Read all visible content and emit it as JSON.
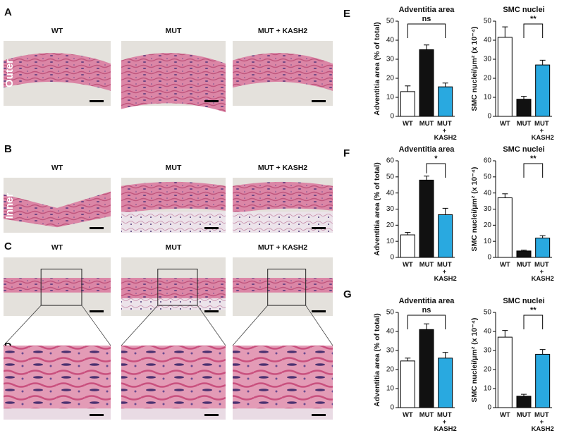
{
  "panels": {
    "letters": [
      "A",
      "B",
      "C",
      "D"
    ],
    "columns": [
      "WT",
      "MUT",
      "MUT + KASH2"
    ],
    "row_labels": [
      "Outer",
      "Inner"
    ]
  },
  "chart_letters": [
    "E",
    "F",
    "G"
  ],
  "chart_data": [
    {
      "type": "bar",
      "title": "Adventitia area",
      "ylabel": "Adventitia area (% of total)",
      "categories": [
        "WT",
        "MUT",
        "MUT + KASH2"
      ],
      "values": [
        13,
        35,
        15.5
      ],
      "errors": [
        3,
        2.5,
        2
      ],
      "colors": [
        "#ffffff",
        "#111111",
        "#29a9e0"
      ],
      "ylim": [
        0,
        50
      ],
      "yticks": [
        0,
        10,
        20,
        30,
        40,
        50
      ],
      "significance": {
        "label": "ns",
        "between": [
          0,
          2
        ]
      }
    },
    {
      "type": "bar",
      "title": "SMC nuclei",
      "ylabel": "SMC nuclei/μm² (x 10⁻⁴)",
      "categories": [
        "WT",
        "MUT",
        "MUT + KASH2"
      ],
      "values": [
        41.5,
        9,
        27
      ],
      "errors": [
        5.5,
        1.5,
        2.5
      ],
      "colors": [
        "#ffffff",
        "#111111",
        "#29a9e0"
      ],
      "ylim": [
        0,
        50
      ],
      "yticks": [
        0,
        10,
        20,
        30,
        40,
        50
      ],
      "significance": {
        "label": "**",
        "between": [
          1,
          2
        ]
      }
    },
    {
      "type": "bar",
      "title": "Adventitia area",
      "ylabel": "Adventitia area (% of total)",
      "categories": [
        "WT",
        "MUT",
        "MUT + KASH2"
      ],
      "values": [
        14,
        48,
        26.5
      ],
      "errors": [
        1.5,
        2.5,
        4
      ],
      "colors": [
        "#ffffff",
        "#111111",
        "#29a9e0"
      ],
      "ylim": [
        0,
        60
      ],
      "yticks": [
        0,
        10,
        20,
        30,
        40,
        50,
        60
      ],
      "significance": {
        "label": "*",
        "between": [
          1,
          2
        ]
      }
    },
    {
      "type": "bar",
      "title": "SMC nuclei",
      "ylabel": "SMC nuclei/μm² (x 10⁻⁴)",
      "categories": [
        "WT",
        "MUT",
        "MUT + KASH2"
      ],
      "values": [
        37,
        4,
        12
      ],
      "errors": [
        2.5,
        0.5,
        1.5
      ],
      "colors": [
        "#ffffff",
        "#111111",
        "#29a9e0"
      ],
      "ylim": [
        0,
        60
      ],
      "yticks": [
        0,
        10,
        20,
        30,
        40,
        50,
        60
      ],
      "significance": {
        "label": "**",
        "between": [
          1,
          2
        ]
      }
    },
    {
      "type": "bar",
      "title": "Adventitia area",
      "ylabel": "Adventitia area (% of total)",
      "categories": [
        "WT",
        "MUT",
        "MUT + KASH2"
      ],
      "values": [
        24.5,
        41,
        26
      ],
      "errors": [
        1.5,
        3,
        3
      ],
      "colors": [
        "#ffffff",
        "#111111",
        "#29a9e0"
      ],
      "ylim": [
        0,
        50
      ],
      "yticks": [
        0,
        10,
        20,
        30,
        40,
        50
      ],
      "significance": {
        "label": "ns",
        "between": [
          0,
          2
        ]
      }
    },
    {
      "type": "bar",
      "title": "SMC nuclei",
      "ylabel": "SMC nuclei/μm² (x 10⁻⁴)",
      "categories": [
        "WT",
        "MUT",
        "MUT + KASH2"
      ],
      "values": [
        37,
        6,
        28
      ],
      "errors": [
        3.5,
        1,
        2.5
      ],
      "colors": [
        "#ffffff",
        "#111111",
        "#29a9e0"
      ],
      "ylim": [
        0,
        50
      ],
      "yticks": [
        0,
        10,
        20,
        30,
        40,
        50
      ],
      "significance": {
        "label": "**",
        "between": [
          1,
          2
        ]
      }
    }
  ]
}
